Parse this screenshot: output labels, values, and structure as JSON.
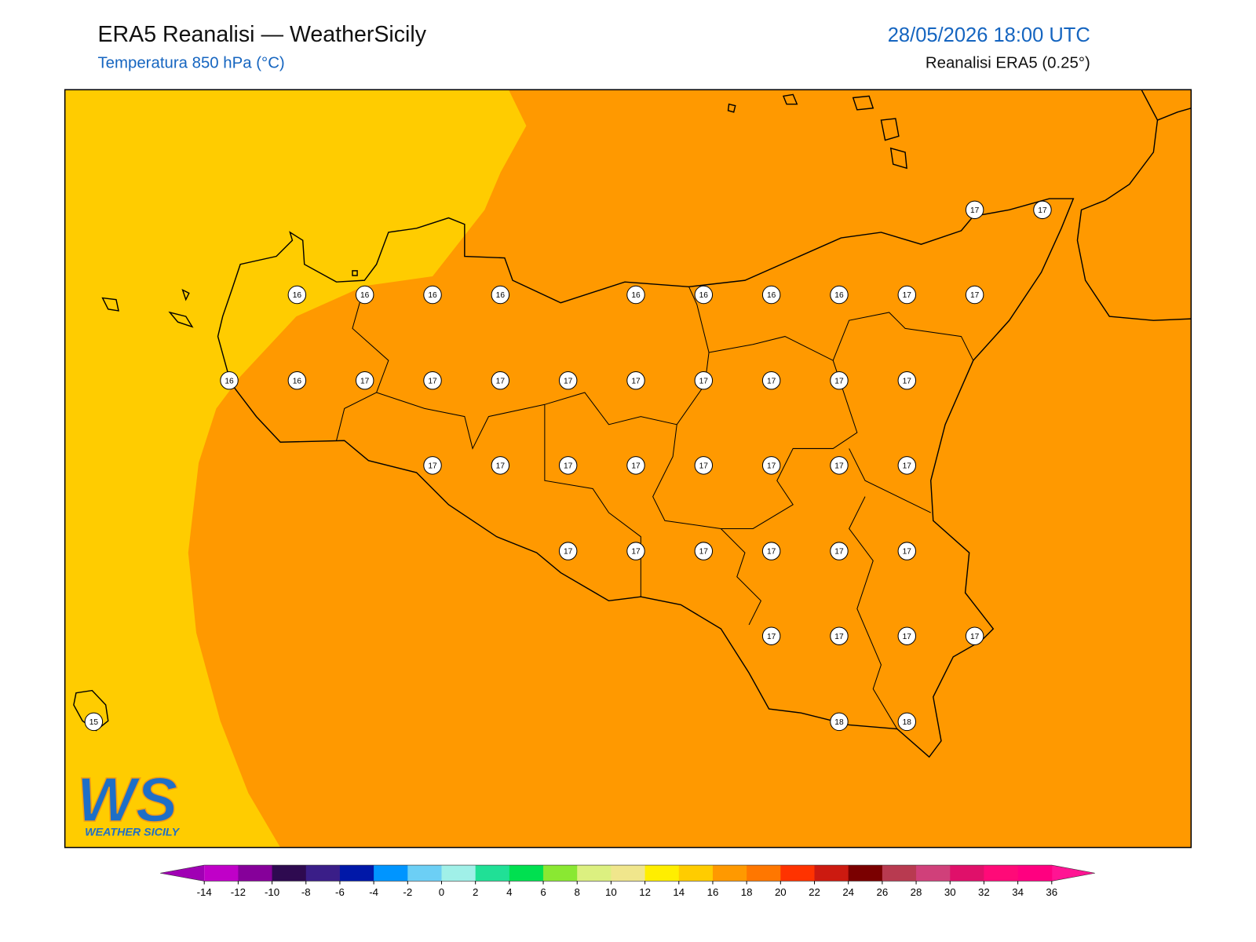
{
  "header": {
    "title": "ERA5 Reanalisi — WeatherSicily",
    "subtitle": "Temperatura 850 hPa (°C)",
    "datetime": "28/05/2026 18:00 UTC",
    "source": "Reanalisi ERA5 (0.25°)"
  },
  "map": {
    "station_values": [
      17,
      17,
      16,
      16,
      16,
      16,
      16,
      16,
      16,
      16,
      17,
      17,
      16,
      16,
      17,
      17,
      17,
      17,
      17,
      17,
      17,
      17,
      17,
      17,
      17,
      17,
      17,
      17,
      17,
      17,
      17,
      17,
      17,
      17,
      17,
      17,
      17,
      17,
      17,
      17,
      17,
      15,
      18,
      18
    ]
  },
  "logo": {
    "letters": "WS",
    "text": "WEATHER SICILY"
  },
  "colorbar": {
    "ticks": [
      -14,
      -12,
      -10,
      -8,
      -6,
      -4,
      -2,
      0,
      2,
      4,
      6,
      8,
      10,
      12,
      14,
      16,
      18,
      20,
      22,
      24,
      26,
      28,
      30,
      32,
      34,
      36
    ],
    "under_color": "#a000b4",
    "over_color": "#ff1493",
    "colors": [
      "#c000c8",
      "#86009a",
      "#2e0a50",
      "#3a1e88",
      "#0018a8",
      "#0095ff",
      "#6ccff5",
      "#a0f0e8",
      "#20e096",
      "#00e050",
      "#8ae832",
      "#dcf080",
      "#f0e68c",
      "#ffee00",
      "#ffcc00",
      "#ff9900",
      "#ff7700",
      "#ff3300",
      "#cc1a10",
      "#7a0000",
      "#b83a50",
      "#d0407a",
      "#e0106a",
      "#ff0a78",
      "#ff0080"
    ]
  }
}
